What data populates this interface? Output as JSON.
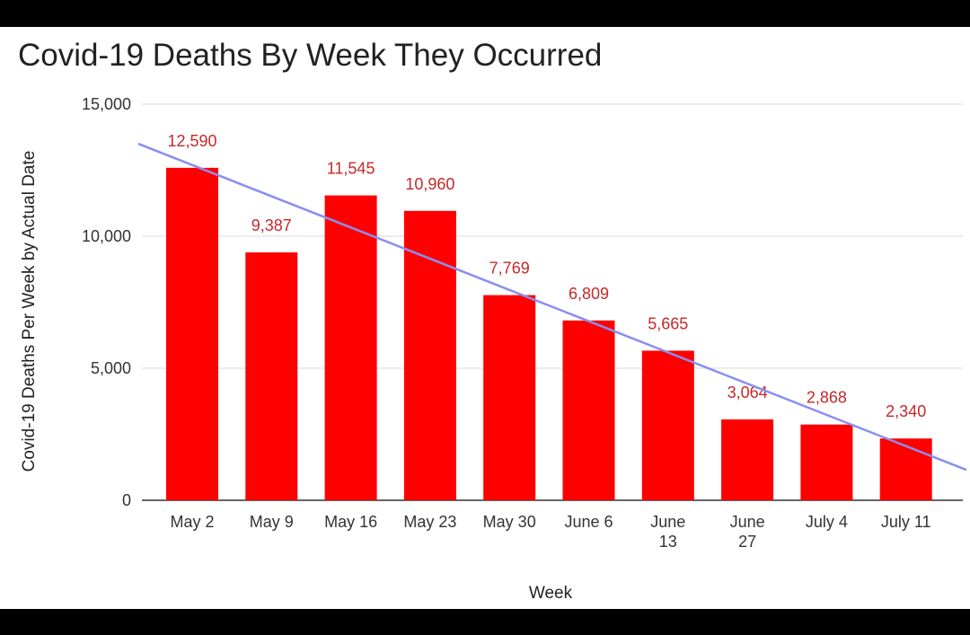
{
  "chart_data": {
    "type": "bar",
    "title": "Covid-19 Deaths By Week They Occurred",
    "xlabel": "Week",
    "ylabel": "Covid-19 Deaths Per Week by Actual Date",
    "categories": [
      "May 2",
      "May 9",
      "May 16",
      "May 23",
      "May 30",
      "June 6",
      "June 13",
      "June 27",
      "July 4",
      "July 11"
    ],
    "category_lines": [
      [
        "May 2"
      ],
      [
        "May 9"
      ],
      [
        "May 16"
      ],
      [
        "May 23"
      ],
      [
        "May 30"
      ],
      [
        "June 6"
      ],
      [
        "June",
        "13"
      ],
      [
        "June",
        "27"
      ],
      [
        "July 4"
      ],
      [
        "July 11"
      ]
    ],
    "values": [
      12590,
      9387,
      11545,
      10960,
      7769,
      6809,
      5665,
      3064,
      2868,
      2340
    ],
    "data_labels": [
      "12,590",
      "9,387",
      "11,545",
      "10,960",
      "7,769",
      "6,809",
      "5,665",
      "3,064",
      "2,868",
      "2,340"
    ],
    "yticks": [
      0,
      5000,
      10000,
      15000
    ],
    "ytick_labels": [
      "0",
      "5,000",
      "10,000",
      "15,000"
    ],
    "ylim": [
      0,
      15000
    ],
    "grid": true,
    "legend": "none",
    "trendline": {
      "type": "linear",
      "start_value": 13500,
      "end_value": 1150,
      "color": "#8a8ef0"
    },
    "colors": {
      "bar": "#ff0000",
      "data_label": "#c62828",
      "grid": "#d9d9d9",
      "frame": "#000000"
    }
  }
}
